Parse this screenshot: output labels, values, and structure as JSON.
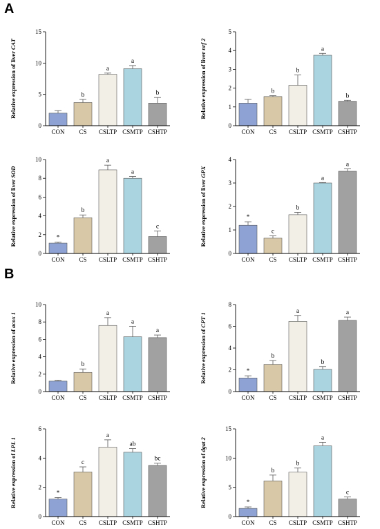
{
  "panels": {
    "A": "A",
    "B": "B"
  },
  "colors": {
    "CON": "#8ea3d3",
    "CS": "#d9c8a7",
    "CSLTP": "#f2efe6",
    "CSMTP": "#aad4e0",
    "CSHTP": "#a1a1a1"
  },
  "chart_data": [
    {
      "type": "bar",
      "panel": "A",
      "ylabel_prefix": "Relative expression of liver ",
      "ylabel_italic": "CAT",
      "categories": [
        "CON",
        "CS",
        "CSLTP",
        "CSMTP",
        "CSHTP"
      ],
      "values": [
        2.0,
        3.7,
        8.2,
        9.1,
        3.6
      ],
      "errors": [
        0.4,
        0.5,
        0.2,
        0.5,
        0.9
      ],
      "labels": [
        "",
        "b",
        "a",
        "a",
        "b"
      ],
      "ylim": [
        0,
        15
      ],
      "yticks": [
        0,
        5,
        10,
        15
      ]
    },
    {
      "type": "bar",
      "panel": "A",
      "ylabel_prefix": "Relative expression of liver ",
      "ylabel_italic": "nrf 2",
      "categories": [
        "CON",
        "CS",
        "CSLTP",
        "CSMTP",
        "CSHTP"
      ],
      "values": [
        1.2,
        1.55,
        2.15,
        3.75,
        1.3
      ],
      "errors": [
        0.2,
        0.05,
        0.55,
        0.1,
        0.05
      ],
      "labels": [
        "",
        "b",
        "b",
        "a",
        "b"
      ],
      "ylim": [
        0,
        5
      ],
      "yticks": [
        0,
        1,
        2,
        3,
        4,
        5
      ]
    },
    {
      "type": "bar",
      "panel": "A",
      "ylabel_prefix": "Relative expression of liver ",
      "ylabel_italic": "SOD",
      "categories": [
        "CON",
        "CS",
        "CSLTP",
        "CSMTP",
        "CSHTP"
      ],
      "values": [
        1.1,
        3.8,
        8.9,
        8.0,
        1.8
      ],
      "errors": [
        0.1,
        0.3,
        0.5,
        0.2,
        0.6
      ],
      "labels": [
        "*",
        "b",
        "a",
        "a",
        "c"
      ],
      "ylim": [
        0,
        10
      ],
      "yticks": [
        0,
        2,
        4,
        6,
        8,
        10
      ]
    },
    {
      "type": "bar",
      "panel": "A",
      "ylabel_prefix": "Relative expression of liver ",
      "ylabel_italic": "GPX",
      "categories": [
        "CON",
        "CS",
        "CSLTP",
        "CSMTP",
        "CSHTP"
      ],
      "values": [
        1.2,
        0.65,
        1.65,
        3.0,
        3.5
      ],
      "errors": [
        0.15,
        0.1,
        0.1,
        0.02,
        0.1
      ],
      "labels": [
        "*",
        "c",
        "b",
        "a",
        "a"
      ],
      "ylim": [
        0,
        4
      ],
      "yticks": [
        0,
        1,
        2,
        3,
        4
      ]
    },
    {
      "type": "bar",
      "panel": "B",
      "ylabel_prefix": "Relative expression of ",
      "ylabel_italic": "acox 1",
      "categories": [
        "CON",
        "CS",
        "CSLTP",
        "CSMTP",
        "CSHTP"
      ],
      "values": [
        1.2,
        2.2,
        7.6,
        6.3,
        6.2
      ],
      "errors": [
        0.1,
        0.4,
        0.9,
        1.2,
        0.3
      ],
      "labels": [
        "",
        "b",
        "a",
        "a",
        "a"
      ],
      "ylim": [
        0,
        10
      ],
      "yticks": [
        0,
        2,
        4,
        6,
        8,
        10
      ]
    },
    {
      "type": "bar",
      "panel": "B",
      "ylabel_prefix": "Relative expression of ",
      "ylabel_italic": "CPT 1",
      "categories": [
        "CON",
        "CS",
        "CSLTP",
        "CSMTP",
        "CSHTP"
      ],
      "values": [
        1.25,
        2.5,
        6.45,
        2.05,
        6.55
      ],
      "errors": [
        0.2,
        0.35,
        0.55,
        0.25,
        0.3
      ],
      "labels": [
        "*",
        "b",
        "a",
        "b",
        "a"
      ],
      "ylim": [
        0,
        8
      ],
      "yticks": [
        0,
        2,
        4,
        6,
        8
      ]
    },
    {
      "type": "bar",
      "panel": "B",
      "ylabel_prefix": "Relative expression of ",
      "ylabel_italic": "LPL 1",
      "categories": [
        "CON",
        "CS",
        "CSLTP",
        "CSMTP",
        "CSHTP"
      ],
      "values": [
        1.2,
        3.05,
        4.75,
        4.4,
        3.5
      ],
      "errors": [
        0.1,
        0.35,
        0.5,
        0.25,
        0.15
      ],
      "labels": [
        "*",
        "c",
        "a",
        "ab",
        "bc"
      ],
      "ylim": [
        0,
        6
      ],
      "yticks": [
        0,
        2,
        4,
        6
      ]
    },
    {
      "type": "bar",
      "panel": "B",
      "ylabel_prefix": "Relative expression of ",
      "ylabel_italic": "dgat 2",
      "categories": [
        "CON",
        "CS",
        "CSLTP",
        "CSMTP",
        "CSHTP"
      ],
      "values": [
        1.4,
        6.1,
        7.6,
        12.1,
        3.0
      ],
      "errors": [
        0.25,
        1.0,
        0.7,
        0.6,
        0.35
      ],
      "labels": [
        "*",
        "b",
        "b",
        "a",
        "c"
      ],
      "ylim": [
        0,
        15
      ],
      "yticks": [
        0,
        5,
        10,
        15
      ]
    }
  ]
}
